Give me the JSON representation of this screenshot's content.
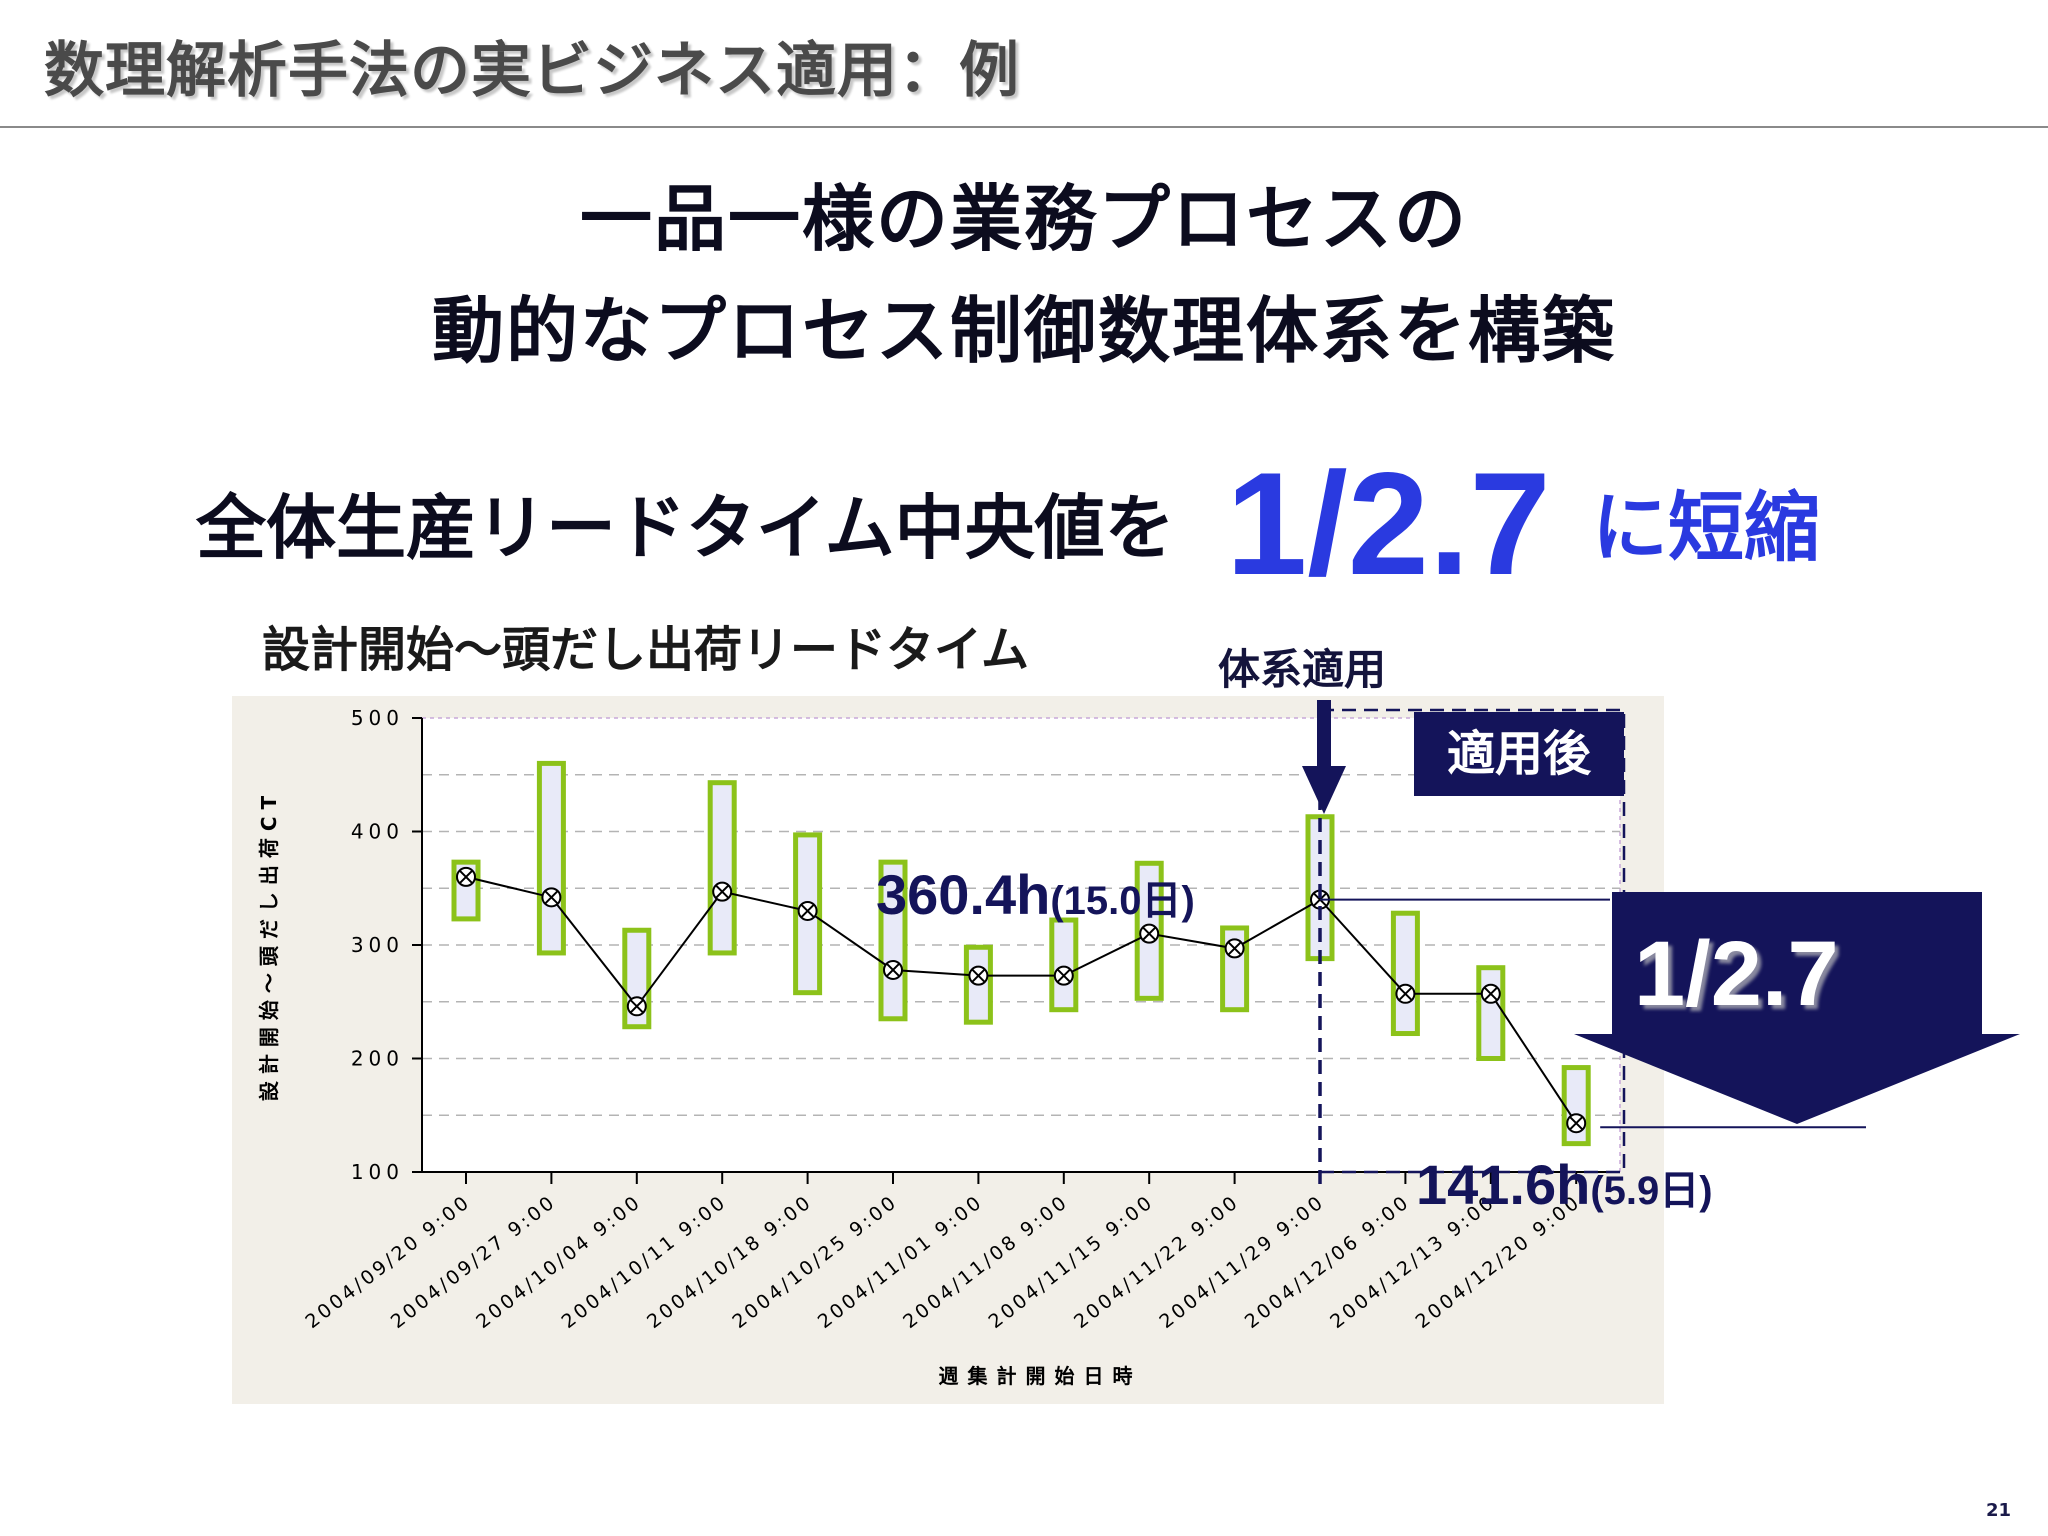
{
  "header": {
    "title": "数理解析手法の実ビジネス適用：例"
  },
  "headline": {
    "line1": "一品一様の業務プロセスの",
    "line2": "動的なプロセス制御数理体系を構築"
  },
  "summary": {
    "lead": "全体生産リードタイム中央値を",
    "ratio": "1/2.7",
    "tail": "に短縮"
  },
  "chart_heading": "設計開始～頭だし出荷リードタイム",
  "annotations": {
    "system_applied": "体系適用",
    "after_label": "適用後",
    "before_value": "360.4h",
    "before_days": "(15.0日)",
    "after_value": "141.6h",
    "after_days": "(5.9日)",
    "reduction": "1/2.7"
  },
  "colors": {
    "box_stroke": "#8cc21a",
    "box_fill": "#e8eaf8",
    "navy": "#14145a",
    "accent_blue": "#2a3ae0"
  },
  "page_number": "21",
  "chart_data": {
    "type": "boxplot",
    "xlabel": "週集計開始日時",
    "ylabel": "設計開始～頭だし出荷CT",
    "ylim": [
      100,
      500
    ],
    "yticks": [
      "100",
      "200",
      "300",
      "400",
      "500"
    ],
    "grid": true,
    "categories": [
      "2004/09/20 9:00",
      "2004/09/27 9:00",
      "2004/10/04 9:00",
      "2004/10/11 9:00",
      "2004/10/18 9:00",
      "2004/10/25 9:00",
      "2004/11/01 9:00",
      "2004/11/08 9:00",
      "2004/11/15 9:00",
      "2004/11/22 9:00",
      "2004/11/29 9:00",
      "2004/12/06 9:00",
      "2004/12/13 9:00",
      "2004/12/20 9:00"
    ],
    "series": [
      {
        "medians": [
          360,
          342,
          246,
          347,
          330,
          278,
          273,
          273,
          310,
          297,
          340,
          257,
          257,
          143
        ],
        "box_low": [
          323,
          293,
          228,
          293,
          258,
          235,
          232,
          243,
          253,
          243,
          288,
          222,
          200,
          125
        ],
        "box_high": [
          373,
          460,
          313,
          443,
          397,
          373,
          298,
          322,
          372,
          315,
          413,
          328,
          280,
          192
        ]
      }
    ]
  }
}
